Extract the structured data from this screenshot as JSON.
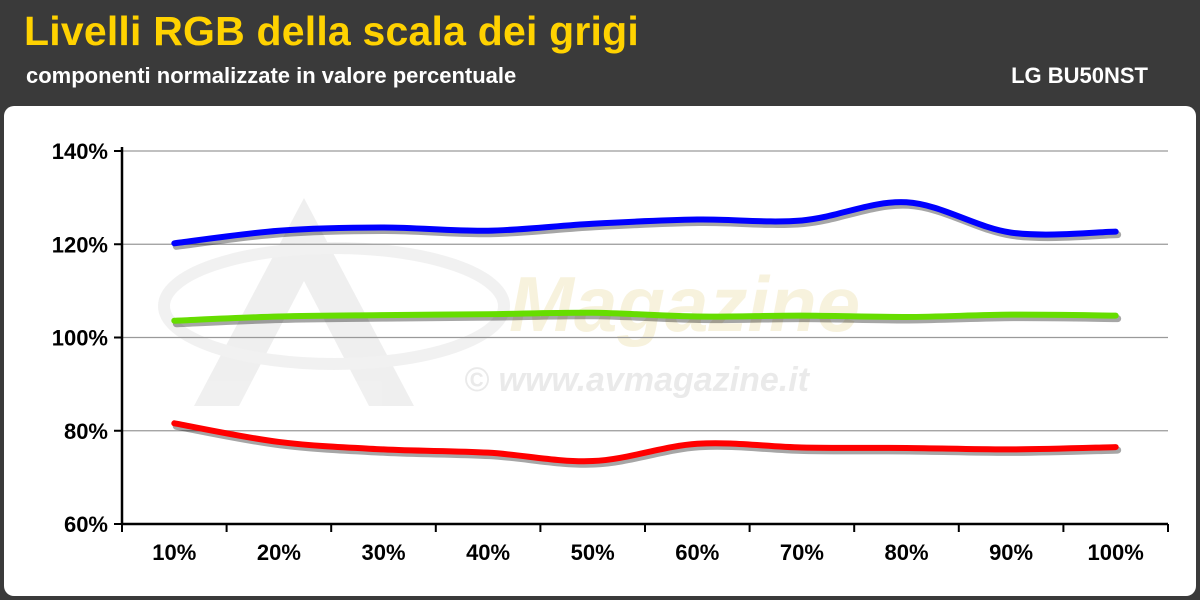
{
  "header": {
    "title": "Livelli RGB della scala dei grigi",
    "subtitle": "componenti normalizzate in valore percentuale",
    "model": "LG BU50NST"
  },
  "watermark": {
    "brand": "Magazine",
    "url": "© www.avmagazine.it"
  },
  "colors": {
    "background": "#3a3a3a",
    "title": "#ffd200",
    "red": "#ff0000",
    "green": "#66dd00",
    "blue": "#0000ff"
  },
  "chart_data": {
    "type": "line",
    "x": [
      "10%",
      "20%",
      "30%",
      "40%",
      "50%",
      "60%",
      "70%",
      "80%",
      "90%",
      "100%"
    ],
    "ylim": [
      60,
      140
    ],
    "yticks": [
      60,
      80,
      100,
      120,
      140
    ],
    "ytick_labels": [
      "60%",
      "80%",
      "100%",
      "120%",
      "140%"
    ],
    "grid": true,
    "series": [
      {
        "color": "#0000ff",
        "values": [
          120.2,
          122.9,
          123.6,
          122.9,
          124.4,
          125.3,
          125.1,
          129.0,
          122.5,
          122.7
        ]
      },
      {
        "color": "#66dd00",
        "values": [
          103.6,
          104.5,
          104.8,
          105.0,
          105.3,
          104.5,
          104.7,
          104.4,
          104.9,
          104.7
        ]
      },
      {
        "color": "#ff0000",
        "values": [
          81.6,
          77.6,
          76.0,
          75.3,
          73.5,
          77.2,
          76.4,
          76.3,
          76.0,
          76.5
        ]
      }
    ]
  }
}
